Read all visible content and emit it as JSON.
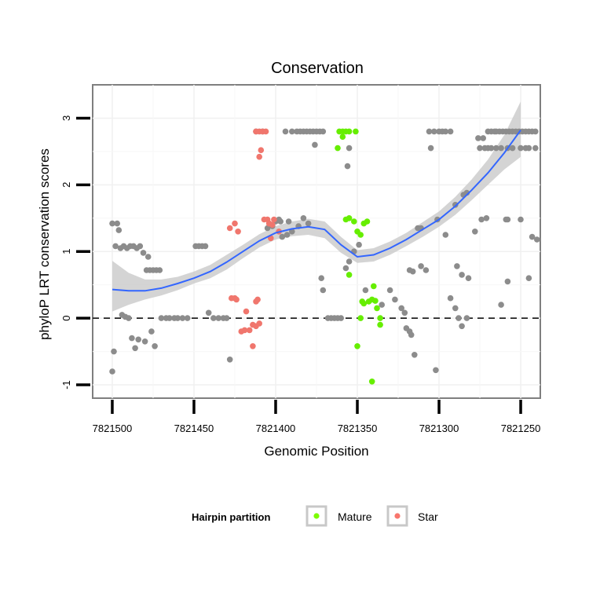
{
  "chart_data": {
    "type": "scatter",
    "title": "Conservation",
    "xlabel": "Genomic Position",
    "ylabel": "phyloP LRT conservation scores",
    "x_reversed": true,
    "xlim": [
      7821512,
      7821238
    ],
    "ylim": [
      -1.2,
      3.5
    ],
    "x_ticks": [
      7821500,
      7821450,
      7821400,
      7821350,
      7821300,
      7821250
    ],
    "x_tick_labels": [
      "7821500",
      "7821450",
      "7821400",
      "7821350",
      "7821300",
      "7821250"
    ],
    "y_ticks": [
      -1,
      0,
      1,
      2,
      3
    ],
    "y_tick_labels": [
      "-1",
      "0",
      "1",
      "2",
      "3"
    ],
    "reference_line": {
      "y": 0,
      "style": "dashed"
    },
    "legend": {
      "title": "Hairpin partition",
      "position": "bottom",
      "entries": [
        {
          "label": "Mature",
          "color": "#7cfc00"
        },
        {
          "label": "Star",
          "color": "#f8766d"
        }
      ]
    },
    "colors": {
      "other": "#8c8c8c",
      "mature": "#66ee00",
      "star": "#f0766d",
      "smooth": "#3366ff",
      "band": "#cccccc"
    },
    "series": [
      {
        "name": "Other",
        "points": [
          [
            7821500,
            1.42
          ],
          [
            7821497,
            1.42
          ],
          [
            7821496,
            1.32
          ],
          [
            7821498,
            1.08
          ],
          [
            7821495,
            1.05
          ],
          [
            7821493,
            1.08
          ],
          [
            7821491,
            1.05
          ],
          [
            7821489,
            1.08
          ],
          [
            7821487,
            1.08
          ],
          [
            7821485,
            1.05
          ],
          [
            7821483,
            1.08
          ],
          [
            7821481,
            0.98
          ],
          [
            7821479,
            0.72
          ],
          [
            7821477,
            0.72
          ],
          [
            7821475,
            0.72
          ],
          [
            7821473,
            0.72
          ],
          [
            7821471,
            0.72
          ],
          [
            7821500,
            -0.8
          ],
          [
            7821499,
            -0.5
          ],
          [
            7821494,
            0.05
          ],
          [
            7821492,
            0.02
          ],
          [
            7821490,
            0.0
          ],
          [
            7821488,
            -0.3
          ],
          [
            7821486,
            -0.45
          ],
          [
            7821484,
            -0.32
          ],
          [
            7821480,
            -0.35
          ],
          [
            7821476,
            -0.2
          ],
          [
            7821474,
            -0.42
          ],
          [
            7821478,
            0.92
          ],
          [
            7821470,
            0.0
          ],
          [
            7821467,
            0.0
          ],
          [
            7821465,
            0.0
          ],
          [
            7821462,
            0.0
          ],
          [
            7821460,
            0.0
          ],
          [
            7821457,
            0.0
          ],
          [
            7821454,
            0.0
          ],
          [
            7821449,
            1.08
          ],
          [
            7821447,
            1.08
          ],
          [
            7821445,
            1.08
          ],
          [
            7821443,
            1.08
          ],
          [
            7821441,
            0.08
          ],
          [
            7821438,
            0.0
          ],
          [
            7821435,
            0.0
          ],
          [
            7821432,
            0.0
          ],
          [
            7821430,
            0.0
          ],
          [
            7821428,
            -0.62
          ],
          [
            7821412,
            2.8
          ],
          [
            7821408,
            2.8
          ],
          [
            7821405,
            1.35
          ],
          [
            7821402,
            1.38
          ],
          [
            7821400,
            1.45
          ],
          [
            7821398,
            1.48
          ],
          [
            7821397,
            1.45
          ],
          [
            7821392,
            1.45
          ],
          [
            7821394,
            2.8
          ],
          [
            7821390,
            2.8
          ],
          [
            7821387,
            2.8
          ],
          [
            7821385,
            2.8
          ],
          [
            7821383,
            2.8
          ],
          [
            7821381,
            2.8
          ],
          [
            7821379,
            2.8
          ],
          [
            7821377,
            2.8
          ],
          [
            7821375,
            2.8
          ],
          [
            7821373,
            2.8
          ],
          [
            7821371,
            2.8
          ],
          [
            7821396,
            1.22
          ],
          [
            7821393,
            1.25
          ],
          [
            7821390,
            1.3
          ],
          [
            7821386,
            1.38
          ],
          [
            7821383,
            1.5
          ],
          [
            7821380,
            1.42
          ],
          [
            7821376,
            2.6
          ],
          [
            7821371,
            0.42
          ],
          [
            7821372,
            0.6
          ],
          [
            7821368,
            0.0
          ],
          [
            7821366,
            0.0
          ],
          [
            7821364,
            0.0
          ],
          [
            7821362,
            0.0
          ],
          [
            7821360,
            0.0
          ],
          [
            7821356,
            2.28
          ],
          [
            7821355,
            2.55
          ],
          [
            7821357,
            0.75
          ],
          [
            7821355,
            0.85
          ],
          [
            7821352,
            1.0
          ],
          [
            7821349,
            1.1
          ],
          [
            7821345,
            0.42
          ],
          [
            7821335,
            0.2
          ],
          [
            7821330,
            0.42
          ],
          [
            7821327,
            0.28
          ],
          [
            7821323,
            0.15
          ],
          [
            7821321,
            0.08
          ],
          [
            7821320,
            -0.15
          ],
          [
            7821318,
            -0.2
          ],
          [
            7821317,
            -0.25
          ],
          [
            7821315,
            -0.55
          ],
          [
            7821318,
            0.72
          ],
          [
            7821316,
            0.7
          ],
          [
            7821311,
            0.78
          ],
          [
            7821308,
            0.72
          ],
          [
            7821313,
            1.35
          ],
          [
            7821311,
            1.35
          ],
          [
            7821300,
            2.8
          ],
          [
            7821298,
            2.8
          ],
          [
            7821296,
            2.8
          ],
          [
            7821293,
            2.8
          ],
          [
            7821306,
            2.8
          ],
          [
            7821303,
            2.8
          ],
          [
            7821305,
            2.55
          ],
          [
            7821302,
            -0.78
          ],
          [
            7821301,
            1.48
          ],
          [
            7821296,
            1.25
          ],
          [
            7821290,
            1.7
          ],
          [
            7821285,
            1.85
          ],
          [
            7821283,
            1.88
          ],
          [
            7821289,
            0.78
          ],
          [
            7821286,
            0.65
          ],
          [
            7821282,
            0.6
          ],
          [
            7821293,
            0.3
          ],
          [
            7821290,
            0.15
          ],
          [
            7821288,
            0.0
          ],
          [
            7821286,
            -0.12
          ],
          [
            7821283,
            0.0
          ],
          [
            7821278,
            1.3
          ],
          [
            7821274,
            1.48
          ],
          [
            7821271,
            1.5
          ],
          [
            7821268,
            2.8
          ],
          [
            7821265,
            2.8
          ],
          [
            7821263,
            2.8
          ],
          [
            7821261,
            2.8
          ],
          [
            7821259,
            2.8
          ],
          [
            7821257,
            2.8
          ],
          [
            7821255,
            2.8
          ],
          [
            7821253,
            2.8
          ],
          [
            7821251,
            2.8
          ],
          [
            7821249,
            2.8
          ],
          [
            7821247,
            2.8
          ],
          [
            7821245,
            2.8
          ],
          [
            7821243,
            2.8
          ],
          [
            7821241,
            2.8
          ],
          [
            7821275,
            2.55
          ],
          [
            7821272,
            2.55
          ],
          [
            7821270,
            2.55
          ],
          [
            7821268,
            2.55
          ],
          [
            7821265,
            2.55
          ],
          [
            7821262,
            2.55
          ],
          [
            7821258,
            2.55
          ],
          [
            7821255,
            2.55
          ],
          [
            7821250,
            2.55
          ],
          [
            7821247,
            2.55
          ],
          [
            7821245,
            2.55
          ],
          [
            7821241,
            2.55
          ],
          [
            7821276,
            2.7
          ],
          [
            7821273,
            2.7
          ],
          [
            7821270,
            2.8
          ],
          [
            7821266,
            2.8
          ],
          [
            7821259,
            1.48
          ],
          [
            7821258,
            0.55
          ],
          [
            7821250,
            1.48
          ],
          [
            7821245,
            0.6
          ],
          [
            7821243,
            1.22
          ],
          [
            7821240,
            1.18
          ],
          [
            7821262,
            0.2
          ],
          [
            7821258,
            1.48
          ]
        ]
      },
      {
        "name": "Mature",
        "points": [
          [
            7821361,
            2.8
          ],
          [
            7821359,
            2.8
          ],
          [
            7821357,
            2.8
          ],
          [
            7821355,
            2.8
          ],
          [
            7821351,
            2.8
          ],
          [
            7821362,
            2.55
          ],
          [
            7821359,
            2.72
          ],
          [
            7821357,
            1.48
          ],
          [
            7821355,
            1.5
          ],
          [
            7821352,
            1.45
          ],
          [
            7821350,
            1.3
          ],
          [
            7821348,
            1.25
          ],
          [
            7821346,
            1.42
          ],
          [
            7821344,
            1.45
          ],
          [
            7821355,
            0.65
          ],
          [
            7821350,
            -0.42
          ],
          [
            7821348,
            0.0
          ],
          [
            7821346,
            0.22
          ],
          [
            7821343,
            0.25
          ],
          [
            7821341,
            0.28
          ],
          [
            7821339,
            0.26
          ],
          [
            7821338,
            0.15
          ],
          [
            7821336,
            0.0
          ],
          [
            7821336,
            -0.1
          ],
          [
            7821341,
            -0.95
          ],
          [
            7821340,
            0.48
          ],
          [
            7821347,
            0.25
          ]
        ]
      },
      {
        "name": "Star",
        "points": [
          [
            7821412,
            2.8
          ],
          [
            7821410,
            2.8
          ],
          [
            7821408,
            2.8
          ],
          [
            7821406,
            2.8
          ],
          [
            7821409,
            2.52
          ],
          [
            7821410,
            2.42
          ],
          [
            7821407,
            1.48
          ],
          [
            7821405,
            1.48
          ],
          [
            7821404,
            1.42
          ],
          [
            7821401,
            1.48
          ],
          [
            7821398,
            1.3
          ],
          [
            7821402,
            1.4
          ],
          [
            7821425,
            1.42
          ],
          [
            7821423,
            1.3
          ],
          [
            7821428,
            1.35
          ],
          [
            7821427,
            0.3
          ],
          [
            7821425,
            0.3
          ],
          [
            7821424,
            0.28
          ],
          [
            7821421,
            -0.2
          ],
          [
            7821419,
            -0.18
          ],
          [
            7821416,
            -0.18
          ],
          [
            7821414,
            -0.1
          ],
          [
            7821412,
            -0.12
          ],
          [
            7821410,
            -0.08
          ],
          [
            7821412,
            0.25
          ],
          [
            7821418,
            0.1
          ],
          [
            7821414,
            -0.42
          ],
          [
            7821411,
            0.28
          ],
          [
            7821403,
            1.2
          ],
          [
            7821404,
            1.42
          ]
        ]
      }
    ],
    "smooth": {
      "x": [
        7821500,
        7821490,
        7821480,
        7821470,
        7821460,
        7821450,
        7821440,
        7821430,
        7821420,
        7821410,
        7821400,
        7821390,
        7821380,
        7821370,
        7821360,
        7821350,
        7821340,
        7821330,
        7821320,
        7821310,
        7821300,
        7821290,
        7821280,
        7821270,
        7821260,
        7821250
      ],
      "y": [
        0.43,
        0.41,
        0.41,
        0.45,
        0.52,
        0.6,
        0.7,
        0.84,
        1.0,
        1.16,
        1.28,
        1.34,
        1.37,
        1.33,
        1.1,
        0.92,
        0.95,
        1.05,
        1.18,
        1.33,
        1.48,
        1.68,
        1.92,
        2.18,
        2.48,
        2.82
      ],
      "lower": [
        0.1,
        0.2,
        0.28,
        0.34,
        0.42,
        0.52,
        0.6,
        0.73,
        0.9,
        1.06,
        1.18,
        1.23,
        1.25,
        1.2,
        0.98,
        0.83,
        0.85,
        0.95,
        1.08,
        1.22,
        1.37,
        1.55,
        1.77,
        2.0,
        2.23,
        2.42
      ],
      "upper": [
        0.86,
        0.68,
        0.58,
        0.58,
        0.62,
        0.7,
        0.8,
        0.95,
        1.1,
        1.26,
        1.38,
        1.45,
        1.49,
        1.45,
        1.22,
        1.02,
        1.05,
        1.15,
        1.28,
        1.44,
        1.6,
        1.82,
        2.08,
        2.38,
        2.75,
        3.25
      ]
    }
  }
}
